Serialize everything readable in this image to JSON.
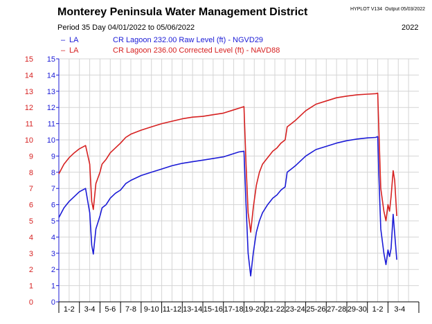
{
  "header": {
    "title": "Monterey Peninsula Water Management District",
    "program": "HYPLOT V134",
    "output": "Output 05/03/2022",
    "period": "Period  35 Day    04/01/2022  to  05/06/2022",
    "year": "2022"
  },
  "legend": [
    {
      "dash": "–",
      "site": "LA",
      "desc": "CR Lagoon  232.00 Raw Level (ft) - NGVD29",
      "color": "#1a1ad6"
    },
    {
      "dash": "–",
      "site": "LA",
      "desc": "CR Lagoon  236.00 Corrected Level (ft) - NAVD88",
      "color": "#d62020"
    }
  ],
  "chart_data": {
    "type": "line",
    "x_unit": "day of period",
    "xlim": [
      0,
      35
    ],
    "categories": [
      "1-2",
      "3-4",
      "5-6",
      "7-8",
      "9-10",
      "11-12",
      "13-14",
      "15-16",
      "17-18",
      "19-20",
      "21-22",
      "23-24",
      "25-26",
      "27-28",
      "29-30",
      "1-2",
      "3-4"
    ],
    "y_left": {
      "ylim": [
        0,
        15
      ],
      "ticks": [
        0,
        1,
        2,
        3,
        4,
        5,
        6,
        7,
        8,
        9,
        10,
        11,
        12,
        13,
        14,
        15
      ],
      "color": "#1a1ad6"
    },
    "y_right": {
      "ylim": [
        0,
        15
      ],
      "ticks": [
        0,
        1,
        2,
        3,
        4,
        5,
        6,
        7,
        8,
        9,
        10,
        11,
        12,
        13,
        14,
        15
      ],
      "color": "#d62020"
    },
    "grid": true,
    "series": [
      {
        "name": "CR Lagoon 232.00 Raw Level (ft) - NGVD29",
        "axis": "left",
        "color": "#1a1ad6",
        "points": [
          [
            0,
            5.2
          ],
          [
            0.5,
            5.8
          ],
          [
            1,
            6.2
          ],
          [
            1.5,
            6.5
          ],
          [
            2,
            6.8
          ],
          [
            2.6,
            7.0
          ],
          [
            3.0,
            5.5
          ],
          [
            3.2,
            3.5
          ],
          [
            3.35,
            2.95
          ],
          [
            3.6,
            4.5
          ],
          [
            4,
            5.3
          ],
          [
            4.2,
            5.8
          ],
          [
            4.6,
            6.0
          ],
          [
            5,
            6.4
          ],
          [
            5.5,
            6.7
          ],
          [
            6,
            6.9
          ],
          [
            6.5,
            7.3
          ],
          [
            7,
            7.5
          ],
          [
            8,
            7.8
          ],
          [
            9,
            8.0
          ],
          [
            10,
            8.2
          ],
          [
            11,
            8.4
          ],
          [
            12,
            8.55
          ],
          [
            13,
            8.65
          ],
          [
            14,
            8.75
          ],
          [
            15,
            8.85
          ],
          [
            16,
            8.95
          ],
          [
            17,
            9.15
          ],
          [
            17.5,
            9.25
          ],
          [
            18.0,
            9.3
          ],
          [
            18.2,
            6.0
          ],
          [
            18.4,
            3.0
          ],
          [
            18.65,
            1.6
          ],
          [
            18.9,
            3.0
          ],
          [
            19.2,
            4.3
          ],
          [
            19.5,
            5.0
          ],
          [
            19.8,
            5.5
          ],
          [
            20.3,
            6.0
          ],
          [
            20.8,
            6.4
          ],
          [
            21.2,
            6.6
          ],
          [
            21.6,
            6.9
          ],
          [
            22.0,
            7.1
          ],
          [
            22.2,
            8.0
          ],
          [
            22.6,
            8.2
          ],
          [
            23,
            8.4
          ],
          [
            23.5,
            8.7
          ],
          [
            24,
            9.0
          ],
          [
            24.5,
            9.2
          ],
          [
            25,
            9.4
          ],
          [
            26,
            9.6
          ],
          [
            27,
            9.8
          ],
          [
            28,
            9.95
          ],
          [
            29,
            10.05
          ],
          [
            30,
            10.12
          ],
          [
            30.8,
            10.15
          ],
          [
            31.0,
            10.2
          ],
          [
            31.1,
            8.0
          ],
          [
            31.3,
            4.5
          ],
          [
            31.6,
            3.0
          ],
          [
            31.8,
            2.3
          ],
          [
            32.0,
            3.2
          ],
          [
            32.15,
            2.8
          ],
          [
            32.3,
            3.3
          ],
          [
            32.5,
            5.4
          ],
          [
            32.65,
            4.2
          ],
          [
            32.85,
            2.6
          ]
        ]
      },
      {
        "name": "CR Lagoon 236.00 Corrected Level (ft) - NAVD88",
        "axis": "right",
        "color": "#d62020",
        "points": [
          [
            0,
            7.9
          ],
          [
            0.5,
            8.5
          ],
          [
            1,
            8.9
          ],
          [
            1.5,
            9.2
          ],
          [
            2,
            9.45
          ],
          [
            2.6,
            9.65
          ],
          [
            3.0,
            8.5
          ],
          [
            3.2,
            6.2
          ],
          [
            3.35,
            5.7
          ],
          [
            3.6,
            7.3
          ],
          [
            4,
            8.0
          ],
          [
            4.2,
            8.5
          ],
          [
            4.6,
            8.8
          ],
          [
            5,
            9.2
          ],
          [
            5.5,
            9.5
          ],
          [
            6,
            9.8
          ],
          [
            6.5,
            10.15
          ],
          [
            7,
            10.35
          ],
          [
            8,
            10.6
          ],
          [
            9,
            10.8
          ],
          [
            10,
            11.0
          ],
          [
            11,
            11.15
          ],
          [
            12,
            11.3
          ],
          [
            13,
            11.4
          ],
          [
            14,
            11.45
          ],
          [
            15,
            11.55
          ],
          [
            16,
            11.65
          ],
          [
            17,
            11.85
          ],
          [
            17.5,
            11.95
          ],
          [
            18.0,
            12.05
          ],
          [
            18.2,
            8.5
          ],
          [
            18.4,
            5.5
          ],
          [
            18.65,
            4.3
          ],
          [
            18.9,
            5.8
          ],
          [
            19.2,
            7.2
          ],
          [
            19.5,
            8.0
          ],
          [
            19.8,
            8.5
          ],
          [
            20.3,
            8.9
          ],
          [
            20.8,
            9.3
          ],
          [
            21.2,
            9.5
          ],
          [
            21.6,
            9.8
          ],
          [
            22.0,
            10.0
          ],
          [
            22.2,
            10.8
          ],
          [
            22.6,
            11.0
          ],
          [
            23,
            11.2
          ],
          [
            23.5,
            11.5
          ],
          [
            24,
            11.8
          ],
          [
            24.5,
            12.0
          ],
          [
            25,
            12.2
          ],
          [
            26,
            12.4
          ],
          [
            27,
            12.6
          ],
          [
            28,
            12.7
          ],
          [
            29,
            12.78
          ],
          [
            30,
            12.82
          ],
          [
            30.8,
            12.85
          ],
          [
            31.0,
            12.88
          ],
          [
            31.1,
            10.8
          ],
          [
            31.3,
            7.0
          ],
          [
            31.6,
            5.6
          ],
          [
            31.8,
            5.0
          ],
          [
            32.0,
            6.0
          ],
          [
            32.15,
            5.6
          ],
          [
            32.3,
            6.5
          ],
          [
            32.5,
            8.1
          ],
          [
            32.65,
            7.5
          ],
          [
            32.85,
            5.3
          ]
        ]
      }
    ]
  }
}
